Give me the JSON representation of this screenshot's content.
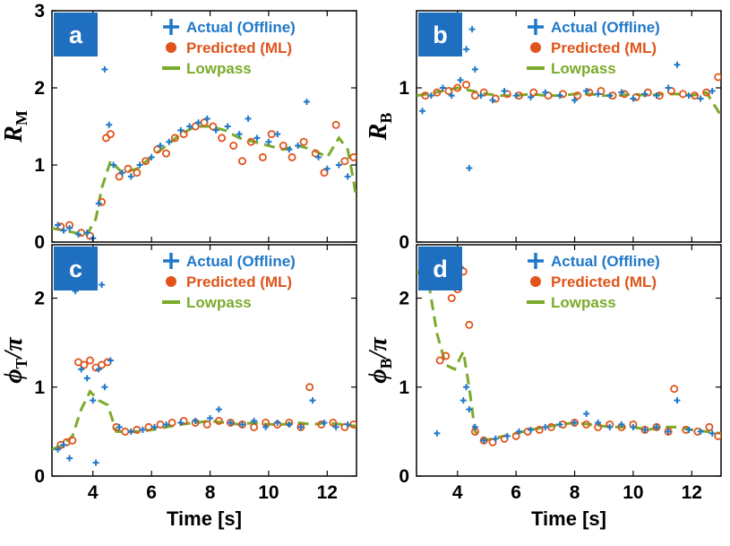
{
  "colors": {
    "actual": "#1f78c8",
    "predicted": "#e0541a",
    "lowpass": "#7aab2a",
    "badge": "#1f6fc0"
  },
  "chart_data": [
    {
      "type": "scatter",
      "panel": "a",
      "ylabel_main": "R",
      "ylabel_sub": "M",
      "xlabel": "",
      "xlim": [
        2.6,
        13
      ],
      "ylim": [
        0,
        3
      ],
      "yticks": [
        0,
        1,
        2,
        3
      ],
      "xticks": [],
      "legend": [
        "Actual (Offline)",
        "Predicted (ML)",
        "Lowpass"
      ],
      "legend_position": "top-right",
      "series": [
        {
          "name": "Actual (Offline)",
          "x": [
            2.8,
            3.0,
            3.2,
            3.5,
            3.8,
            4.0,
            4.2,
            4.4,
            4.55,
            4.7,
            5.0,
            5.3,
            5.6,
            6.0,
            6.3,
            6.6,
            7.0,
            7.3,
            7.6,
            7.9,
            8.2,
            8.6,
            9.0,
            9.3,
            9.6,
            10.0,
            10.3,
            10.7,
            11.0,
            11.3,
            11.7,
            12.0,
            12.4,
            12.7
          ],
          "y": [
            0.22,
            0.15,
            0.18,
            0.1,
            0.12,
            0.05,
            0.5,
            2.24,
            1.52,
            1.0,
            0.9,
            0.85,
            1.0,
            1.1,
            1.25,
            1.3,
            1.45,
            1.5,
            1.55,
            1.6,
            1.45,
            1.5,
            1.4,
            1.6,
            1.35,
            1.3,
            1.4,
            1.2,
            1.25,
            1.82,
            1.1,
            0.95,
            1.0,
            0.85
          ]
        },
        {
          "name": "Predicted (ML)",
          "x": [
            2.9,
            3.2,
            3.6,
            3.9,
            4.3,
            4.45,
            4.6,
            4.9,
            5.2,
            5.5,
            5.8,
            6.2,
            6.5,
            6.8,
            7.1,
            7.5,
            7.8,
            8.1,
            8.4,
            8.8,
            9.1,
            9.4,
            9.8,
            10.1,
            10.5,
            10.8,
            11.2,
            11.6,
            11.9,
            12.3,
            12.6,
            12.9
          ],
          "y": [
            0.2,
            0.22,
            0.12,
            0.08,
            0.52,
            1.35,
            1.4,
            0.85,
            0.95,
            0.9,
            1.05,
            1.2,
            1.15,
            1.35,
            1.4,
            1.5,
            1.55,
            1.5,
            1.35,
            1.25,
            1.05,
            1.3,
            1.1,
            1.4,
            1.25,
            1.1,
            1.3,
            1.15,
            0.9,
            1.52,
            1.05,
            1.1
          ]
        },
        {
          "name": "Lowpass",
          "x": [
            2.6,
            3.0,
            3.4,
            3.8,
            4.1,
            4.3,
            4.6,
            5.0,
            5.5,
            6.0,
            6.5,
            7.0,
            7.5,
            8.0,
            8.5,
            9.0,
            9.5,
            10.0,
            10.5,
            11.0,
            11.5,
            12.0,
            12.4,
            12.7,
            12.9,
            13.0
          ],
          "y": [
            0.18,
            0.15,
            0.12,
            0.1,
            0.3,
            0.7,
            1.05,
            0.9,
            0.95,
            1.1,
            1.25,
            1.4,
            1.5,
            1.5,
            1.45,
            1.35,
            1.3,
            1.25,
            1.2,
            1.25,
            1.2,
            1.1,
            1.35,
            1.2,
            0.8,
            0.55
          ]
        }
      ]
    },
    {
      "type": "scatter",
      "panel": "b",
      "ylabel_main": "R",
      "ylabel_sub": "B",
      "xlabel": "",
      "xlim": [
        2.6,
        13
      ],
      "ylim": [
        0,
        1.5
      ],
      "yticks": [
        0,
        1
      ],
      "xticks": [],
      "legend": [
        "Actual (Offline)",
        "Predicted (ML)",
        "Lowpass"
      ],
      "legend_position": "top-right",
      "series": [
        {
          "name": "Actual (Offline)",
          "x": [
            2.8,
            3.1,
            3.5,
            3.8,
            4.1,
            4.3,
            4.4,
            4.5,
            4.6,
            4.8,
            5.2,
            5.6,
            6.0,
            6.5,
            7.0,
            7.5,
            8.0,
            8.4,
            8.8,
            9.2,
            9.6,
            10.0,
            10.4,
            10.8,
            11.2,
            11.5,
            11.9,
            12.3,
            12.7
          ],
          "y": [
            0.85,
            0.95,
            1.0,
            0.95,
            1.05,
            1.25,
            0.48,
            1.38,
            1.12,
            0.95,
            0.92,
            0.98,
            0.95,
            0.94,
            0.97,
            0.95,
            0.92,
            0.98,
            0.96,
            0.95,
            0.97,
            0.93,
            0.96,
            0.95,
            1.0,
            1.15,
            0.95,
            0.93,
            0.98
          ]
        },
        {
          "name": "Predicted (ML)",
          "x": [
            2.9,
            3.3,
            3.7,
            4.0,
            4.3,
            4.6,
            4.9,
            5.3,
            5.7,
            6.1,
            6.6,
            7.1,
            7.6,
            8.1,
            8.5,
            8.9,
            9.3,
            9.7,
            10.1,
            10.5,
            10.9,
            11.3,
            11.7,
            12.1,
            12.5,
            12.9
          ],
          "y": [
            0.95,
            0.97,
            0.98,
            1.0,
            1.02,
            0.95,
            0.97,
            0.93,
            0.96,
            0.95,
            0.97,
            0.95,
            0.96,
            0.95,
            0.97,
            0.98,
            0.95,
            0.96,
            0.94,
            0.97,
            0.95,
            0.98,
            0.96,
            0.95,
            0.97,
            1.07
          ]
        },
        {
          "name": "Lowpass",
          "x": [
            2.6,
            3.0,
            3.5,
            4.0,
            4.5,
            5.0,
            5.5,
            6.0,
            6.5,
            7.0,
            7.5,
            8.0,
            8.5,
            9.0,
            9.5,
            10.0,
            10.5,
            11.0,
            11.5,
            12.0,
            12.5,
            13.0
          ],
          "y": [
            0.95,
            0.96,
            0.98,
            1.0,
            0.98,
            0.96,
            0.95,
            0.95,
            0.96,
            0.95,
            0.95,
            0.96,
            0.96,
            0.95,
            0.95,
            0.96,
            0.95,
            0.96,
            0.96,
            0.95,
            0.97,
            0.82
          ]
        }
      ]
    },
    {
      "type": "scatter",
      "panel": "c",
      "ylabel_main": "ϕ",
      "ylabel_sub": "T",
      "ylabel_tail": "/π",
      "xlabel": "Time [s]",
      "xlim": [
        2.6,
        13
      ],
      "ylim": [
        0,
        2.6
      ],
      "yticks": [
        0,
        1,
        2
      ],
      "xticks": [
        4,
        6,
        8,
        10,
        12
      ],
      "legend": [
        "Actual (Offline)",
        "Predicted (ML)",
        "Lowpass"
      ],
      "legend_position": "top-right",
      "series": [
        {
          "name": "Actual (Offline)",
          "x": [
            2.8,
            3.0,
            3.2,
            3.4,
            3.6,
            3.8,
            4.0,
            4.1,
            4.2,
            4.3,
            4.4,
            4.6,
            4.9,
            5.3,
            5.7,
            6.1,
            6.5,
            7.0,
            7.5,
            8.0,
            8.3,
            8.7,
            9.1,
            9.5,
            9.9,
            10.3,
            10.7,
            11.1,
            11.5,
            11.9,
            12.3,
            12.7
          ],
          "y": [
            0.3,
            0.35,
            0.2,
            2.08,
            1.2,
            1.1,
            0.85,
            0.15,
            1.2,
            2.15,
            1.0,
            1.3,
            0.55,
            0.5,
            0.52,
            0.55,
            0.58,
            0.6,
            0.62,
            0.65,
            0.75,
            0.6,
            0.58,
            0.62,
            0.55,
            0.6,
            0.58,
            0.55,
            0.85,
            0.6,
            0.55,
            0.58
          ]
        },
        {
          "name": "Predicted (ML)",
          "x": [
            2.9,
            3.1,
            3.3,
            3.5,
            3.7,
            3.9,
            4.1,
            4.3,
            4.5,
            4.8,
            5.1,
            5.5,
            5.9,
            6.3,
            6.7,
            7.1,
            7.5,
            7.9,
            8.3,
            8.7,
            9.1,
            9.5,
            9.9,
            10.3,
            10.7,
            11.1,
            11.4,
            11.8,
            12.2,
            12.6,
            12.9
          ],
          "y": [
            0.35,
            0.38,
            0.4,
            1.28,
            1.25,
            1.3,
            1.22,
            1.25,
            1.28,
            0.55,
            0.5,
            0.52,
            0.55,
            0.58,
            0.6,
            0.62,
            0.6,
            0.58,
            0.62,
            0.6,
            0.58,
            0.55,
            0.6,
            0.58,
            0.6,
            0.55,
            1.0,
            0.58,
            0.6,
            0.55,
            0.58
          ]
        },
        {
          "name": "Lowpass",
          "x": [
            2.6,
            3.0,
            3.3,
            3.6,
            3.9,
            4.2,
            4.5,
            4.8,
            5.2,
            5.6,
            6.0,
            6.5,
            7.0,
            7.5,
            8.0,
            8.5,
            9.0,
            9.5,
            10.0,
            10.5,
            11.0,
            11.5,
            12.0,
            12.5,
            13.0
          ],
          "y": [
            0.3,
            0.35,
            0.45,
            0.75,
            0.95,
            0.85,
            0.8,
            0.5,
            0.5,
            0.5,
            0.52,
            0.55,
            0.58,
            0.6,
            0.62,
            0.6,
            0.58,
            0.6,
            0.58,
            0.58,
            0.6,
            0.58,
            0.6,
            0.58,
            0.56
          ]
        }
      ]
    },
    {
      "type": "scatter",
      "panel": "d",
      "ylabel_main": "ϕ",
      "ylabel_sub": "B",
      "ylabel_tail": "/π",
      "xlabel": "Time [s]",
      "xlim": [
        2.6,
        13
      ],
      "ylim": [
        0,
        2.6
      ],
      "yticks": [
        0,
        1,
        2
      ],
      "xticks": [
        4,
        6,
        8,
        10,
        12
      ],
      "legend": [
        "Actual (Offline)",
        "Predicted (ML)",
        "Lowpass"
      ],
      "legend_position": "top-right",
      "series": [
        {
          "name": "Actual (Offline)",
          "x": [
            2.8,
            3.0,
            3.2,
            3.3,
            3.5,
            3.7,
            3.9,
            4.1,
            4.2,
            4.3,
            4.4,
            4.6,
            4.9,
            5.3,
            5.7,
            6.1,
            6.5,
            7.0,
            7.5,
            8.0,
            8.4,
            8.8,
            9.2,
            9.6,
            10.0,
            10.4,
            10.8,
            11.2,
            11.5,
            11.9,
            12.3,
            12.7
          ],
          "y": [
            2.3,
            2.32,
            2.28,
            0.48,
            2.25,
            2.3,
            2.28,
            2.35,
            0.85,
            1.0,
            0.75,
            0.55,
            0.4,
            0.42,
            0.45,
            0.5,
            0.52,
            0.55,
            0.58,
            0.6,
            0.7,
            0.6,
            0.55,
            0.58,
            0.55,
            0.52,
            0.55,
            0.5,
            0.85,
            0.52,
            0.5,
            0.48
          ]
        },
        {
          "name": "Predicted (ML)",
          "x": [
            2.9,
            3.1,
            3.4,
            3.6,
            3.8,
            4.0,
            4.2,
            4.4,
            4.6,
            4.9,
            5.2,
            5.6,
            6.0,
            6.4,
            6.8,
            7.2,
            7.6,
            8.0,
            8.4,
            8.8,
            9.2,
            9.6,
            10.0,
            10.4,
            10.8,
            11.2,
            11.4,
            11.8,
            12.2,
            12.6,
            12.9
          ],
          "y": [
            2.32,
            2.3,
            1.3,
            1.35,
            2.0,
            2.1,
            2.3,
            1.7,
            0.5,
            0.4,
            0.38,
            0.42,
            0.45,
            0.5,
            0.52,
            0.55,
            0.58,
            0.6,
            0.58,
            0.55,
            0.58,
            0.55,
            0.58,
            0.52,
            0.55,
            0.5,
            0.98,
            0.52,
            0.5,
            0.55,
            0.45
          ]
        },
        {
          "name": "Lowpass",
          "x": [
            2.6,
            3.0,
            3.3,
            3.6,
            3.9,
            4.2,
            4.4,
            4.6,
            4.9,
            5.2,
            5.6,
            6.0,
            6.5,
            7.0,
            7.5,
            8.0,
            8.5,
            9.0,
            9.5,
            10.0,
            10.5,
            11.0,
            11.5,
            12.0,
            12.5,
            13.0
          ],
          "y": [
            2.3,
            2.2,
            1.6,
            1.25,
            1.2,
            1.4,
            1.0,
            0.5,
            0.4,
            0.42,
            0.45,
            0.48,
            0.52,
            0.55,
            0.58,
            0.6,
            0.58,
            0.56,
            0.55,
            0.55,
            0.52,
            0.55,
            0.55,
            0.52,
            0.5,
            0.48
          ]
        }
      ]
    }
  ]
}
